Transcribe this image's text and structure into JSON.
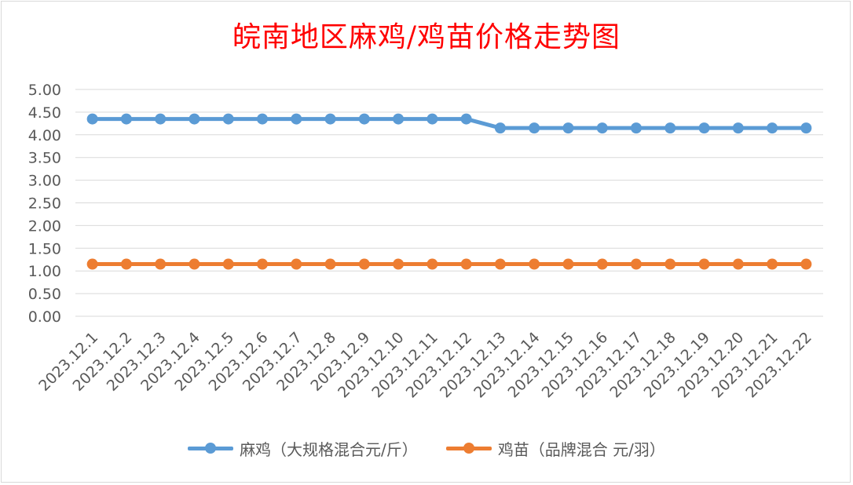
{
  "title": "皖南地区麻鸡/鸡苗价格走势图",
  "chart_data": {
    "type": "line",
    "title": "皖南地区麻鸡/鸡苗价格走势图",
    "categories": [
      "2023.12.1",
      "2023.12.2",
      "2023.12.3",
      "2023.12.4",
      "2023.12.5",
      "2023.12.6",
      "2023.12.7",
      "2023.12.8",
      "2023.12.9",
      "2023.12.10",
      "2023.12.11",
      "2023.12.12",
      "2023.12.13",
      "2023.12.14",
      "2023.12.15",
      "2023.12.16",
      "2023.12.17",
      "2023.12.18",
      "2023.12.19",
      "2023.12.20",
      "2023.12.21",
      "2023.12.22"
    ],
    "series": [
      {
        "name": "麻鸡（大规格混合元/斤）",
        "color": "#5b9bd5",
        "values": [
          4.35,
          4.35,
          4.35,
          4.35,
          4.35,
          4.35,
          4.35,
          4.35,
          4.35,
          4.35,
          4.35,
          4.35,
          4.15,
          4.15,
          4.15,
          4.15,
          4.15,
          4.15,
          4.15,
          4.15,
          4.15,
          4.15
        ]
      },
      {
        "name": "鸡苗（品牌混合 元/羽）",
        "color": "#ed7d31",
        "values": [
          1.15,
          1.15,
          1.15,
          1.15,
          1.15,
          1.15,
          1.15,
          1.15,
          1.15,
          1.15,
          1.15,
          1.15,
          1.15,
          1.15,
          1.15,
          1.15,
          1.15,
          1.15,
          1.15,
          1.15,
          1.15,
          1.15
        ]
      }
    ],
    "ylim": [
      0,
      5
    ],
    "yticks": [
      "0.00",
      "0.50",
      "1.00",
      "1.50",
      "2.00",
      "2.50",
      "3.00",
      "3.50",
      "4.00",
      "4.50",
      "5.00"
    ],
    "grid": true,
    "legend_position": "bottom"
  }
}
